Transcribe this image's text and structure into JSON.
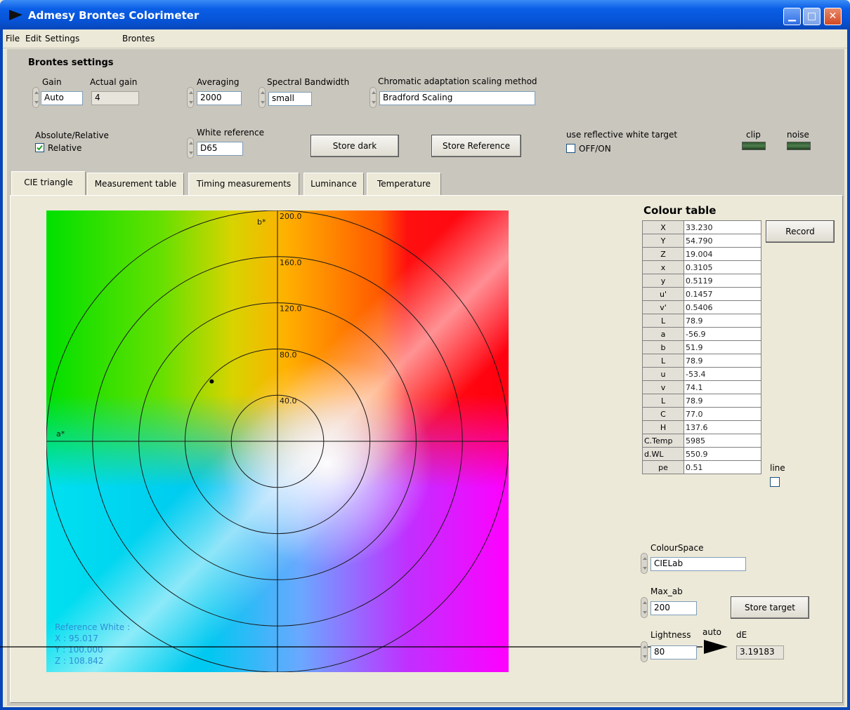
{
  "window": {
    "title": "Admesy Brontes Colorimeter"
  },
  "menu": [
    "File",
    "Edit",
    "Settings",
    "Brontes"
  ],
  "settings": {
    "heading": "Brontes settings",
    "gain_label": "Gain",
    "gain_value": "Auto",
    "actual_gain_label": "Actual gain",
    "actual_gain_value": "4",
    "averaging_label": "Averaging",
    "averaging_value": "2000",
    "spectral_label": "Spectral Bandwidth",
    "spectral_value": "small",
    "chromatic_label": "Chromatic adaptation scaling method",
    "chromatic_value": "Bradford Scaling",
    "absrel_label": "Absolute/Relative",
    "absrel_value": "Relative",
    "white_ref_label": "White reference",
    "white_ref_value": "D65",
    "store_dark": "Store dark",
    "store_reference": "Store Reference",
    "reflective_label": "use reflective white target",
    "reflective_value": "OFF/ON",
    "clip_label": "clip",
    "noise_label": "noise"
  },
  "tabs": [
    "CIE triangle",
    "Measurement table",
    "Timing measurements",
    "Luminance",
    "Temperature"
  ],
  "plot": {
    "b_axis_label": "b*",
    "a_axis_label": "a*",
    "ring_labels": [
      "200.0",
      "160.0",
      "120.0",
      "80.0",
      "40.0"
    ],
    "ref_white": [
      "Reference White :",
      "X : 95.017",
      "Y : 100.000",
      "Z : 108.842"
    ],
    "measured_point": {
      "a": -56.9,
      "b": 51.9
    }
  },
  "colour_table": {
    "title": "Colour table",
    "rows": [
      {
        "k": "X",
        "v": "33.230"
      },
      {
        "k": "Y",
        "v": "54.790"
      },
      {
        "k": "Z",
        "v": "19.004"
      },
      {
        "k": "x",
        "v": "0.3105"
      },
      {
        "k": "y",
        "v": "0.5119"
      },
      {
        "k": "u'",
        "v": "0.1457"
      },
      {
        "k": "v'",
        "v": "0.5406"
      },
      {
        "k": "L",
        "v": "78.9"
      },
      {
        "k": "a",
        "v": "-56.9"
      },
      {
        "k": "b",
        "v": "51.9"
      },
      {
        "k": "L",
        "v": "78.9"
      },
      {
        "k": "u",
        "v": "-53.4"
      },
      {
        "k": "v",
        "v": "74.1"
      },
      {
        "k": "L",
        "v": "78.9"
      },
      {
        "k": "C",
        "v": "77.0"
      },
      {
        "k": "H",
        "v": "137.6"
      },
      {
        "k": "C.Temp",
        "v": "5985"
      },
      {
        "k": "d.WL",
        "v": "550.9"
      },
      {
        "k": "pe",
        "v": "0.51"
      }
    ]
  },
  "right": {
    "record": "Record",
    "line_label": "line",
    "colourspace_label": "ColourSpace",
    "colourspace_value": "CIELab",
    "maxab_label": "Max_ab",
    "maxab_value": "200",
    "store_target": "Store target",
    "lightness_label": "Lightness",
    "lightness_value": "80",
    "auto_label": "auto",
    "de_label": "dE",
    "de_value": "3.19183"
  }
}
